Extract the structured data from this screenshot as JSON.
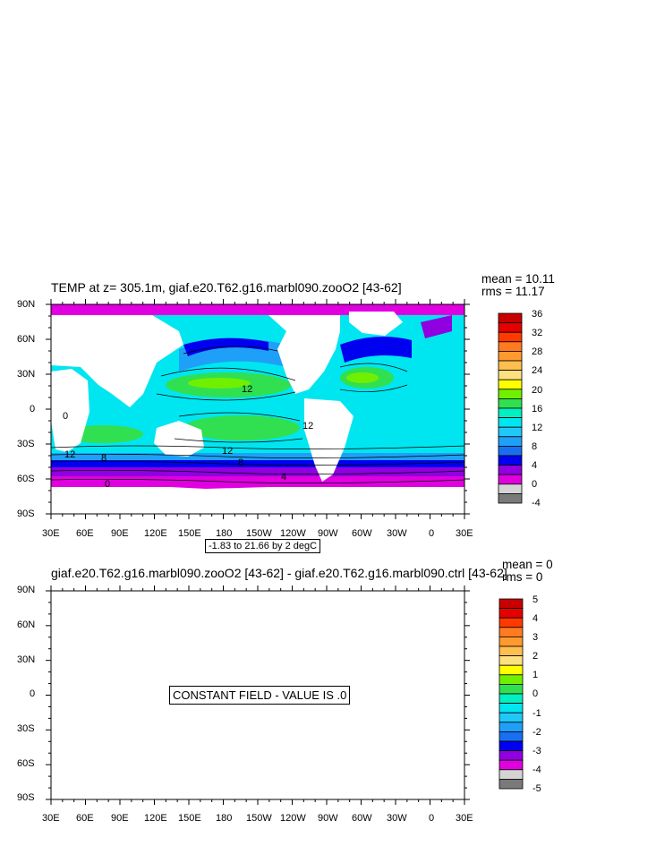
{
  "panel_top": {
    "title": "TEMP at z= 305.1m, giaf.e20.T62.g16.marbl090.zooO2 [43-62]",
    "mean": "mean = 10.11",
    "rms": "rms = 11.17",
    "lat_labels": [
      "90N",
      "60N",
      "30N",
      "0",
      "30S",
      "60S",
      "90S"
    ],
    "lon_labels": [
      "30E",
      "60E",
      "90E",
      "120E",
      "150E",
      "180",
      "150W",
      "120W",
      "90W",
      "60W",
      "30W",
      "0",
      "30E"
    ],
    "contour_info": "-1.83 to 21.66 by 2 degC",
    "contour_labels": [
      "12",
      "12",
      "12",
      "12",
      "8",
      "8",
      "4",
      "0",
      "0"
    ],
    "colorbar": {
      "labels": [
        "36",
        "32",
        "28",
        "24",
        "20",
        "16",
        "12",
        "8",
        "4",
        "0",
        "-4"
      ],
      "colors": [
        "#c80000",
        "#e60000",
        "#ff3a00",
        "#ff7a20",
        "#ff9a30",
        "#ffbe50",
        "#ffe080",
        "#ffff00",
        "#70f000",
        "#30e050",
        "#00f0c0",
        "#00e6f0",
        "#20c8f8",
        "#1ea0f8",
        "#1870f0",
        "#0000f0",
        "#9000e0",
        "#e000e0",
        "#d4d4d4",
        "#7a7a7a"
      ]
    }
  },
  "panel_bottom": {
    "title": "giaf.e20.T62.g16.marbl090.zooO2 [43-62] - giaf.e20.T62.g16.marbl090.ctrl [43-62]",
    "mean": "mean = 0",
    "rms": "rms = 0",
    "lat_labels": [
      "90N",
      "60N",
      "30N",
      "0",
      "30S",
      "60S",
      "90S"
    ],
    "lon_labels": [
      "30E",
      "60E",
      "90E",
      "120E",
      "150E",
      "180",
      "150W",
      "120W",
      "90W",
      "60W",
      "30W",
      "0",
      "30E"
    ],
    "constant_text": "CONSTANT FIELD - VALUE IS .0",
    "colorbar": {
      "labels": [
        "5",
        "4",
        "3",
        "2",
        "1",
        "0",
        "-1",
        "-2",
        "-3",
        "-4",
        "-5"
      ],
      "colors": [
        "#c80000",
        "#e60000",
        "#ff3a00",
        "#ff7a20",
        "#ff9a30",
        "#ffbe50",
        "#ffe080",
        "#ffff00",
        "#70f000",
        "#30e050",
        "#00f0c0",
        "#00e6f0",
        "#20c8f8",
        "#1ea0f8",
        "#1870f0",
        "#0000f0",
        "#9000e0",
        "#e000e0",
        "#d4d4d4",
        "#7a7a7a"
      ]
    }
  }
}
